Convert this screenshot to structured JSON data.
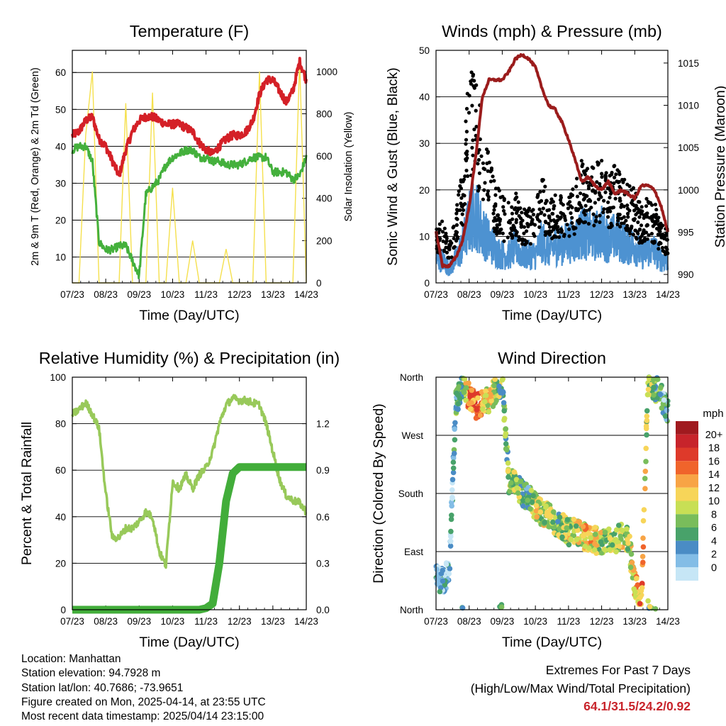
{
  "x_ticks": [
    "07/23",
    "08/23",
    "09/23",
    "10/23",
    "11/23",
    "12/23",
    "13/23",
    "14/23"
  ],
  "x_label": "Time (Day/UTC)",
  "chart_data": [
    {
      "type": "line",
      "title": "Temperature (F)",
      "xlabel": "Time (Day/UTC)",
      "ylabel": "2m & 9m T (Red, Orange) & 2m Td (Green)",
      "y2label": "Solar Insolation (Yellow)",
      "ylim": [
        3,
        66
      ],
      "y2lim": [
        0,
        1100
      ],
      "yticks": [
        10,
        20,
        30,
        40,
        50,
        60
      ],
      "y2ticks": [
        0,
        200,
        400,
        600,
        800,
        1000
      ],
      "grid": true,
      "x": [
        7.0,
        7.2,
        7.4,
        7.6,
        7.8,
        8.0,
        8.2,
        8.4,
        8.6,
        8.8,
        9.0,
        9.2,
        9.4,
        9.6,
        9.8,
        10.0,
        10.2,
        10.4,
        10.6,
        10.8,
        11.0,
        11.2,
        11.4,
        11.6,
        11.8,
        12.0,
        12.2,
        12.4,
        12.6,
        12.8,
        13.0,
        13.2,
        13.4,
        13.6,
        13.8,
        14.0
      ],
      "series": [
        {
          "color": "#d42027",
          "values": [
            43,
            44,
            47,
            48,
            42,
            40,
            36,
            32,
            39,
            44,
            47,
            48,
            48,
            47,
            46,
            46,
            46,
            45,
            44,
            41,
            39,
            38,
            40,
            42,
            43,
            43,
            44,
            47,
            54,
            58,
            58,
            55,
            52,
            55,
            63,
            58
          ]
        },
        {
          "color": "#44b03c",
          "values": [
            39,
            40,
            40,
            36,
            14,
            12,
            12,
            13,
            13,
            9,
            5,
            27,
            29,
            31,
            35,
            37,
            38,
            39,
            39,
            37,
            37,
            36,
            36,
            35,
            35,
            35,
            36,
            37,
            37,
            37,
            33,
            33,
            33,
            31,
            32,
            37
          ]
        },
        {
          "color": "#f5e04d",
          "values": [
            0,
            0,
            700,
            1000,
            0,
            0,
            0,
            0,
            850,
            0,
            0,
            0,
            900,
            0,
            0,
            450,
            0,
            0,
            200,
            0,
            0,
            0,
            0,
            160,
            0,
            0,
            0,
            0,
            1000,
            0,
            0,
            0,
            0,
            0,
            1050,
            0
          ]
        }
      ]
    },
    {
      "type": "scatter",
      "title": "Winds (mph) & Pressure (mb)",
      "xlabel": "Time (Day/UTC)",
      "ylabel": "Sonic Wind & Gust (Blue, Black)",
      "y2label": "Station Pressure (Maroon)",
      "ylim": [
        0,
        50
      ],
      "y2lim": [
        989,
        1016.5
      ],
      "yticks": [
        0,
        10,
        20,
        30,
        40,
        50
      ],
      "y2ticks": [
        990,
        995,
        1000,
        1005,
        1010,
        1015
      ],
      "grid": true,
      "x": [
        7.0,
        7.2,
        7.4,
        7.6,
        7.8,
        8.0,
        8.2,
        8.4,
        8.6,
        8.8,
        9.0,
        9.2,
        9.4,
        9.6,
        9.8,
        10.0,
        10.2,
        10.4,
        10.6,
        10.8,
        11.0,
        11.2,
        11.4,
        11.6,
        11.8,
        12.0,
        12.2,
        12.4,
        12.6,
        12.8,
        13.0,
        13.2,
        13.4,
        13.6,
        13.8,
        14.0
      ],
      "series": [
        {
          "color": "#000000",
          "values": [
            9,
            10,
            6,
            12,
            18,
            35,
            33,
            26,
            22,
            16,
            14,
            13,
            15,
            12,
            12,
            12,
            18,
            13,
            14,
            14,
            15,
            16,
            20,
            19,
            19,
            20,
            17,
            19,
            17,
            16,
            15,
            12,
            14,
            13,
            10,
            9
          ]
        },
        {
          "color": "#4d92d1",
          "values": [
            5,
            5,
            3,
            5,
            8,
            13,
            15,
            11,
            9,
            7,
            6,
            6,
            8,
            6,
            6,
            6,
            9,
            7,
            8,
            8,
            9,
            9,
            11,
            10,
            10,
            11,
            9,
            10,
            9,
            8,
            8,
            6,
            7,
            7,
            5,
            5
          ]
        },
        {
          "color": "#9b1c1c",
          "axis": "right",
          "values": [
            995,
            991,
            991,
            992,
            994,
            998,
            1004,
            1011,
            1013,
            1013,
            1013,
            1014,
            1015.5,
            1016,
            1015.5,
            1014.5,
            1012,
            1010,
            1009.5,
            1008,
            1006,
            1003.5,
            1001,
            1001.5,
            1000.5,
            1000,
            1001,
            999.5,
            1000,
            999.5,
            999,
            1000.5,
            1000.5,
            1000,
            998,
            995
          ]
        }
      ]
    },
    {
      "type": "line",
      "title": "Relative Humidity (%) & Precipitation (in)",
      "xlabel": "Time (Day/UTC)",
      "ylabel": "Percent & Total Rainfall",
      "ylim": [
        0,
        100
      ],
      "y2lim": [
        0,
        1.5
      ],
      "yticks": [
        0,
        20,
        40,
        60,
        80,
        100
      ],
      "y2ticks": [
        "0.0",
        "0.3",
        "0.6",
        "0.9",
        "1.2"
      ],
      "grid": true,
      "x": [
        7.0,
        7.2,
        7.4,
        7.6,
        7.8,
        8.0,
        8.2,
        8.4,
        8.6,
        8.8,
        9.0,
        9.2,
        9.4,
        9.6,
        9.8,
        10.0,
        10.2,
        10.4,
        10.6,
        10.8,
        11.0,
        11.2,
        11.4,
        11.6,
        11.8,
        12.0,
        12.2,
        12.4,
        12.6,
        12.8,
        13.0,
        13.2,
        13.4,
        13.6,
        13.8,
        14.0
      ],
      "series": [
        {
          "color": "#98c95a",
          "values": [
            84,
            86,
            89,
            84,
            78,
            50,
            31,
            31,
            35,
            35,
            38,
            42,
            40,
            25,
            19,
            55,
            52,
            58,
            52,
            58,
            61,
            68,
            80,
            88,
            91,
            90,
            90,
            89,
            88,
            80,
            68,
            56,
            49,
            47,
            46,
            42
          ]
        },
        {
          "color": "#42ad3a",
          "axis": "right",
          "values": [
            0,
            0,
            0,
            0,
            0,
            0,
            0,
            0,
            0,
            0,
            0,
            0,
            0,
            0,
            0,
            0,
            0,
            0,
            0,
            0,
            0.01,
            0.04,
            0.3,
            0.7,
            0.88,
            0.92,
            0.92,
            0.92,
            0.92,
            0.92,
            0.92,
            0.92,
            0.92,
            0.92,
            0.92,
            0.92
          ]
        }
      ]
    },
    {
      "type": "scatter",
      "title": "Wind Direction",
      "xlabel": "Time (Day/UTC)",
      "ylabel": "Direction (Colored By Speed)",
      "yticks": [
        "North",
        "East",
        "South",
        "West",
        "North"
      ],
      "ylim": [
        0,
        360
      ],
      "grid": true,
      "x": [
        7.0,
        7.2,
        7.4,
        7.6,
        7.8,
        8.0,
        8.2,
        8.4,
        8.6,
        8.8,
        9.0,
        9.2,
        9.4,
        9.6,
        9.8,
        10.0,
        10.2,
        10.4,
        10.6,
        10.8,
        11.0,
        11.2,
        11.4,
        11.6,
        11.8,
        12.0,
        12.2,
        12.4,
        12.6,
        12.8,
        13.0,
        13.2,
        13.4,
        13.6,
        13.8,
        14.0
      ],
      "direction": [
        50,
        45,
        60,
        320,
        345,
        330,
        315,
        320,
        325,
        340,
        350,
        200,
        195,
        180,
        175,
        160,
        150,
        148,
        135,
        130,
        120,
        125,
        115,
        110,
        108,
        105,
        110,
        105,
        115,
        110,
        40,
        15,
        355,
        345,
        330,
        305
      ],
      "speed": [
        4,
        4,
        3,
        6,
        8,
        16,
        18,
        14,
        12,
        10,
        8,
        9,
        10,
        8,
        6,
        12,
        10,
        11,
        9,
        10,
        11,
        10,
        13,
        14,
        12,
        10,
        9,
        10,
        12,
        10,
        14,
        16,
        10,
        8,
        6,
        4
      ],
      "colorbar": {
        "title": "mph",
        "labels": [
          "20+",
          "18",
          "16",
          "14",
          "12",
          "10",
          "8",
          "6",
          "4",
          "2",
          "0"
        ],
        "colors": [
          "#a01a1f",
          "#c7242b",
          "#de3a2a",
          "#f0642b",
          "#f8a445",
          "#f7d559",
          "#c8df55",
          "#79bd5b",
          "#48a26a",
          "#4a8cc5",
          "#83bde6",
          "#c6e6f6"
        ]
      }
    }
  ],
  "station": {
    "location": "Location: Manhattan",
    "elevation": "Station elevation: 94.7928 m",
    "latlon": "Station lat/lon: 40.7686; -73.9651",
    "created": "Figure created on Mon, 2025-04-14, at 23:55 UTC",
    "recent": "Most recent data timestamp: 2025/04/14 23:15:00"
  },
  "extremes": {
    "title": "Extremes For Past 7 Days",
    "subtitle": "(High/Low/Max Wind/Total Precipitation)",
    "values": "64.1/31.5/24.2/0.92"
  }
}
